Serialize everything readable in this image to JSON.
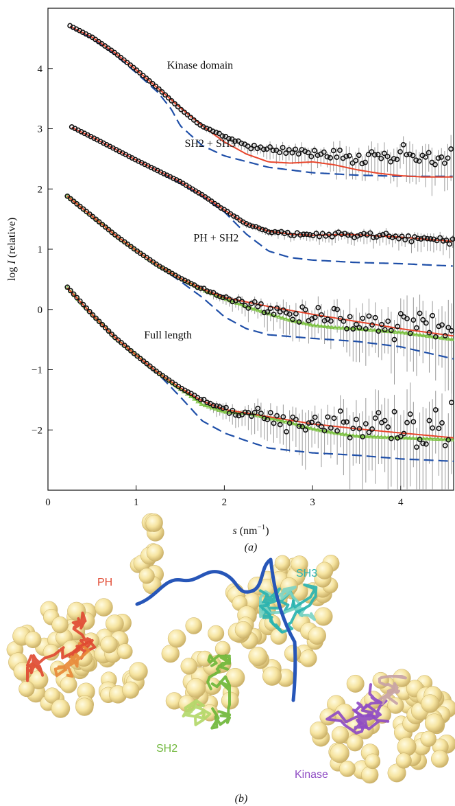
{
  "panel_a_label": "(a)",
  "panel_b_label": "(b)",
  "chart_data": {
    "type": "scatter",
    "xlabel_symbol": "s",
    "xlabel_unit": " (nm",
    "xlabel_exp": "−1",
    "xlabel_close": ")",
    "ylabel_pre": "log ",
    "ylabel_symbol": "I",
    "ylabel_post": " (relative)",
    "xlim": [
      0,
      4.6
    ],
    "ylim": [
      -3.0,
      5.0
    ],
    "xticks": [
      0,
      1,
      2,
      3,
      4
    ],
    "yticks": [
      -2,
      -1,
      0,
      1,
      2,
      3,
      4
    ],
    "ytick_labels": [
      "−2",
      "−1",
      "0",
      "1",
      "2",
      "3",
      "4"
    ],
    "grid": false,
    "colors": {
      "experimental": "#111111",
      "fit_red": "#e8442a",
      "fit_green": "#7cc242",
      "model_blue": "#1f4fa8",
      "error_bar": "#9a9a9a"
    },
    "curves": [
      {
        "label": "Kinase domain",
        "label_pos": [
          1.35,
          4.0
        ],
        "start": 0.25,
        "end": 4.6,
        "red": [
          [
            0.25,
            4.7
          ],
          [
            0.5,
            4.52
          ],
          [
            0.75,
            4.27
          ],
          [
            1.0,
            3.98
          ],
          [
            1.25,
            3.67
          ],
          [
            1.5,
            3.35
          ],
          [
            1.75,
            3.05
          ],
          [
            2.0,
            2.78
          ],
          [
            2.25,
            2.58
          ],
          [
            2.5,
            2.45
          ],
          [
            2.75,
            2.43
          ],
          [
            3.0,
            2.45
          ],
          [
            3.25,
            2.4
          ],
          [
            3.5,
            2.32
          ],
          [
            3.75,
            2.26
          ],
          [
            4.0,
            2.22
          ],
          [
            4.25,
            2.2
          ],
          [
            4.6,
            2.2
          ]
        ],
        "blue": [
          [
            0.25,
            4.7
          ],
          [
            0.5,
            4.5
          ],
          [
            0.75,
            4.24
          ],
          [
            1.0,
            3.93
          ],
          [
            1.25,
            3.6
          ],
          [
            1.4,
            3.32
          ],
          [
            1.5,
            3.05
          ],
          [
            1.75,
            2.72
          ],
          [
            2.0,
            2.55
          ],
          [
            2.5,
            2.36
          ],
          [
            3.0,
            2.27
          ],
          [
            3.5,
            2.23
          ],
          [
            4.0,
            2.21
          ],
          [
            4.6,
            2.21
          ]
        ],
        "obs": [
          [
            0.25,
            4.71
          ],
          [
            0.5,
            4.52
          ],
          [
            0.75,
            4.27
          ],
          [
            1.0,
            3.98
          ],
          [
            1.25,
            3.67
          ],
          [
            1.5,
            3.33
          ],
          [
            1.75,
            3.03
          ],
          [
            2.0,
            2.88
          ],
          [
            2.25,
            2.73
          ],
          [
            2.5,
            2.66
          ],
          [
            2.75,
            2.62
          ],
          [
            3.0,
            2.6
          ],
          [
            3.25,
            2.58
          ],
          [
            3.5,
            2.55
          ],
          [
            3.75,
            2.57
          ],
          [
            4.0,
            2.56
          ],
          [
            4.25,
            2.54
          ],
          [
            4.6,
            2.55
          ]
        ],
        "noise_scale": 0.13
      },
      {
        "label": "SH2 + SH3",
        "label_pos": [
          1.55,
          2.7
        ],
        "start": 0.27,
        "end": 4.6,
        "red": [
          [
            0.27,
            3.02
          ],
          [
            0.5,
            2.86
          ],
          [
            0.75,
            2.67
          ],
          [
            1.0,
            2.48
          ],
          [
            1.25,
            2.3
          ],
          [
            1.5,
            2.12
          ],
          [
            1.75,
            1.9
          ],
          [
            2.0,
            1.65
          ],
          [
            2.25,
            1.42
          ],
          [
            2.5,
            1.3
          ],
          [
            2.75,
            1.25
          ],
          [
            3.0,
            1.23
          ],
          [
            3.25,
            1.24
          ],
          [
            3.5,
            1.24
          ],
          [
            3.75,
            1.22
          ],
          [
            4.0,
            1.2
          ],
          [
            4.25,
            1.17
          ],
          [
            4.6,
            1.13
          ]
        ],
        "blue": [
          [
            0.27,
            3.02
          ],
          [
            0.5,
            2.86
          ],
          [
            0.75,
            2.67
          ],
          [
            1.0,
            2.48
          ],
          [
            1.25,
            2.3
          ],
          [
            1.5,
            2.1
          ],
          [
            1.75,
            1.88
          ],
          [
            2.0,
            1.62
          ],
          [
            2.25,
            1.25
          ],
          [
            2.5,
            0.97
          ],
          [
            2.75,
            0.86
          ],
          [
            3.0,
            0.82
          ],
          [
            3.5,
            0.78
          ],
          [
            4.0,
            0.76
          ],
          [
            4.6,
            0.72
          ]
        ],
        "obs": [
          [
            0.27,
            3.03
          ],
          [
            0.5,
            2.86
          ],
          [
            0.75,
            2.67
          ],
          [
            1.0,
            2.48
          ],
          [
            1.25,
            2.3
          ],
          [
            1.5,
            2.12
          ],
          [
            1.75,
            1.9
          ],
          [
            2.0,
            1.65
          ],
          [
            2.25,
            1.42
          ],
          [
            2.5,
            1.3
          ],
          [
            2.75,
            1.25
          ],
          [
            3.0,
            1.24
          ],
          [
            3.25,
            1.24
          ],
          [
            3.5,
            1.24
          ],
          [
            3.75,
            1.22
          ],
          [
            4.0,
            1.2
          ],
          [
            4.25,
            1.17
          ],
          [
            4.6,
            1.14
          ]
        ],
        "noise_scale": 0.05
      },
      {
        "label": "PH + SH2",
        "label_pos": [
          1.65,
          1.13
        ],
        "start": 0.22,
        "end": 4.6,
        "green": [
          [
            0.22,
            1.88
          ],
          [
            0.5,
            1.55
          ],
          [
            0.75,
            1.25
          ],
          [
            1.0,
            0.98
          ],
          [
            1.25,
            0.73
          ],
          [
            1.5,
            0.52
          ],
          [
            1.75,
            0.33
          ],
          [
            2.0,
            0.18
          ],
          [
            2.25,
            0.05
          ],
          [
            2.5,
            -0.07
          ],
          [
            2.75,
            -0.18
          ],
          [
            3.0,
            -0.26
          ],
          [
            3.25,
            -0.3
          ],
          [
            3.5,
            -0.32
          ],
          [
            4.0,
            -0.38
          ],
          [
            4.6,
            -0.5
          ]
        ],
        "red": [
          [
            0.22,
            1.88
          ],
          [
            0.5,
            1.55
          ],
          [
            0.75,
            1.25
          ],
          [
            1.0,
            0.98
          ],
          [
            1.25,
            0.73
          ],
          [
            1.5,
            0.52
          ],
          [
            1.75,
            0.34
          ],
          [
            2.0,
            0.2
          ],
          [
            2.5,
            0.05
          ],
          [
            3.0,
            -0.08
          ],
          [
            3.5,
            -0.2
          ],
          [
            4.0,
            -0.32
          ],
          [
            4.6,
            -0.44
          ]
        ],
        "blue": [
          [
            0.22,
            1.88
          ],
          [
            0.5,
            1.55
          ],
          [
            0.75,
            1.25
          ],
          [
            1.0,
            0.98
          ],
          [
            1.25,
            0.72
          ],
          [
            1.5,
            0.47
          ],
          [
            1.75,
            0.2
          ],
          [
            2.0,
            -0.12
          ],
          [
            2.25,
            -0.32
          ],
          [
            2.5,
            -0.42
          ],
          [
            3.0,
            -0.48
          ],
          [
            3.5,
            -0.53
          ],
          [
            4.0,
            -0.62
          ],
          [
            4.6,
            -0.82
          ]
        ],
        "obs": [
          [
            0.22,
            1.88
          ],
          [
            0.5,
            1.55
          ],
          [
            0.75,
            1.25
          ],
          [
            1.0,
            0.98
          ],
          [
            1.25,
            0.73
          ],
          [
            1.5,
            0.52
          ],
          [
            1.75,
            0.34
          ],
          [
            2.0,
            0.2
          ],
          [
            2.25,
            0.1
          ],
          [
            2.5,
            0.02
          ],
          [
            2.75,
            -0.05
          ],
          [
            3.0,
            -0.1
          ],
          [
            3.25,
            -0.14
          ],
          [
            3.5,
            -0.18
          ],
          [
            4.0,
            -0.25
          ],
          [
            4.6,
            -0.35
          ]
        ],
        "noise_scale": 0.22
      },
      {
        "label": "Full length",
        "label_pos": [
          1.09,
          -0.48
        ],
        "start": 0.22,
        "end": 4.6,
        "green": [
          [
            0.22,
            0.36
          ],
          [
            0.5,
            -0.08
          ],
          [
            0.75,
            -0.45
          ],
          [
            1.0,
            -0.76
          ],
          [
            1.25,
            -1.05
          ],
          [
            1.5,
            -1.32
          ],
          [
            1.75,
            -1.58
          ],
          [
            2.0,
            -1.7
          ],
          [
            2.25,
            -1.72
          ],
          [
            2.5,
            -1.8
          ],
          [
            2.75,
            -1.88
          ],
          [
            3.0,
            -1.98
          ],
          [
            3.25,
            -2.05
          ],
          [
            3.5,
            -2.1
          ],
          [
            4.0,
            -2.13
          ],
          [
            4.6,
            -2.16
          ]
        ],
        "red": [
          [
            0.22,
            0.36
          ],
          [
            0.5,
            -0.08
          ],
          [
            0.75,
            -0.45
          ],
          [
            1.0,
            -0.76
          ],
          [
            1.25,
            -1.05
          ],
          [
            1.5,
            -1.3
          ],
          [
            1.75,
            -1.52
          ],
          [
            2.0,
            -1.66
          ],
          [
            2.5,
            -1.78
          ],
          [
            3.0,
            -1.9
          ],
          [
            3.5,
            -1.98
          ],
          [
            4.0,
            -2.05
          ],
          [
            4.6,
            -2.13
          ]
        ],
        "blue": [
          [
            0.22,
            0.36
          ],
          [
            0.5,
            -0.08
          ],
          [
            0.75,
            -0.45
          ],
          [
            1.0,
            -0.76
          ],
          [
            1.25,
            -1.07
          ],
          [
            1.5,
            -1.45
          ],
          [
            1.75,
            -1.85
          ],
          [
            2.0,
            -2.05
          ],
          [
            2.25,
            -2.18
          ],
          [
            2.5,
            -2.3
          ],
          [
            3.0,
            -2.38
          ],
          [
            3.5,
            -2.42
          ],
          [
            4.0,
            -2.48
          ],
          [
            4.6,
            -2.52
          ]
        ],
        "obs": [
          [
            0.22,
            0.37
          ],
          [
            0.5,
            -0.08
          ],
          [
            0.75,
            -0.45
          ],
          [
            1.0,
            -0.76
          ],
          [
            1.25,
            -1.05
          ],
          [
            1.5,
            -1.3
          ],
          [
            1.75,
            -1.5
          ],
          [
            2.0,
            -1.65
          ],
          [
            2.25,
            -1.72
          ],
          [
            2.5,
            -1.78
          ],
          [
            2.75,
            -1.82
          ],
          [
            3.0,
            -1.88
          ],
          [
            3.25,
            -1.9
          ],
          [
            3.5,
            -1.95
          ],
          [
            4.0,
            -2.0
          ],
          [
            4.6,
            -2.05
          ]
        ],
        "noise_scale": 0.32
      }
    ]
  },
  "structure": {
    "domains": [
      {
        "name": "PH",
        "color": "#e04a32"
      },
      {
        "name": "SH3",
        "color": "#2ab3b0"
      },
      {
        "name": "SH2",
        "color": "#6fb73a"
      },
      {
        "name": "Kinase",
        "color": "#8f4cc4"
      }
    ]
  }
}
